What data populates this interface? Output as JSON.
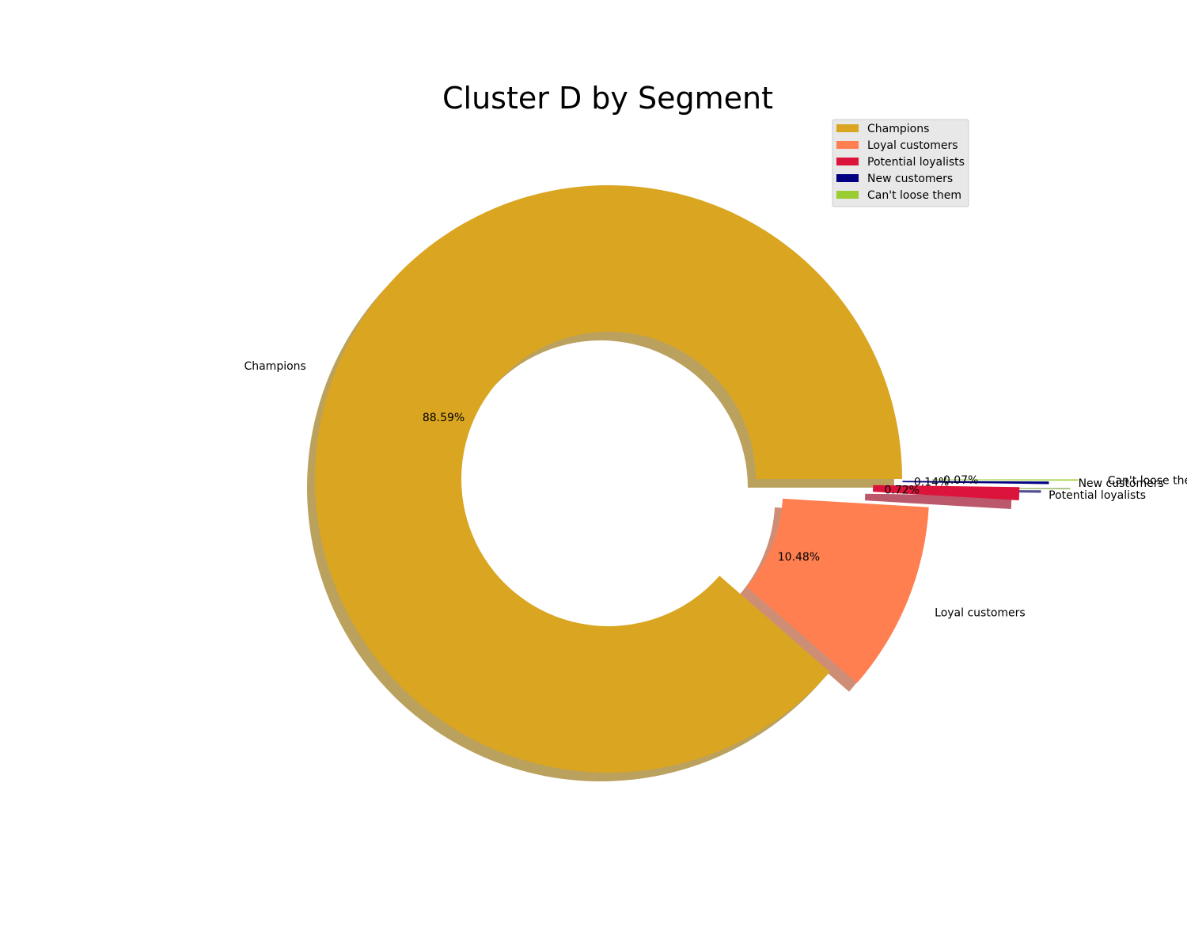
{
  "chart_data": {
    "type": "pie",
    "title": "Cluster D by Segment",
    "donut": true,
    "shadow": true,
    "legend_placement": "top-right",
    "slices": [
      {
        "label": "Champions",
        "value": 88.59,
        "pct_label": "88.59%",
        "color": "#DAA520"
      },
      {
        "label": "Loyal customers",
        "value": 10.48,
        "pct_label": "10.48%",
        "color": "#FF7F50"
      },
      {
        "label": "Potential loyalists",
        "value": 0.72,
        "pct_label": "0.72%",
        "color": "#DC143C"
      },
      {
        "label": "New customers",
        "value": 0.14,
        "pct_label": "0.14%",
        "color": "#000080"
      },
      {
        "label": "Can't loose them",
        "value": 0.07,
        "pct_label": "0.07%",
        "color": "#9ACD32"
      }
    ]
  }
}
